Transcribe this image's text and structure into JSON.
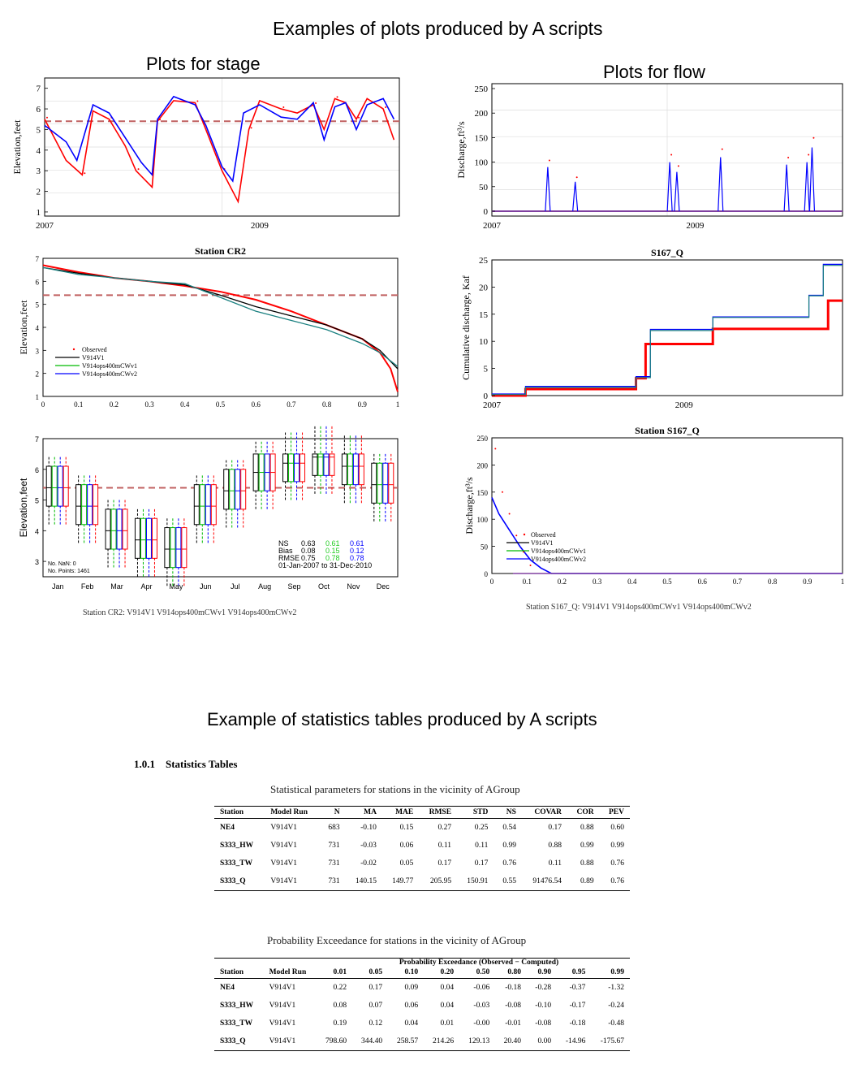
{
  "headings": {
    "main_title": "Examples of plots produced by A scripts",
    "stage_title": "Plots for stage",
    "flow_title": "Plots for flow",
    "tables_title": "Example of statistics tables produced by A scripts"
  },
  "colors": {
    "observed": "#ff0000",
    "v914v1": "#000000",
    "cwv1": "#00bb00",
    "cwv2": "#0000ff",
    "dashed": "#c06060",
    "teal": "#1a8080"
  },
  "chart_data": [
    {
      "id": "stage_ts",
      "type": "line",
      "ylabel": "Elevation,feet",
      "ylim": [
        0.8,
        7.5
      ],
      "yticks": [
        "1",
        "2",
        "3",
        "4",
        "5",
        "6",
        "7"
      ],
      "xticks": [
        "2007",
        "2009"
      ],
      "reference_line": 5.4,
      "series": [
        {
          "color": "red",
          "values": [
            [
              2007.0,
              5.5
            ],
            [
              2007.2,
              3.5
            ],
            [
              2007.35,
              2.8
            ],
            [
              2007.45,
              5.9
            ],
            [
              2007.6,
              5.5
            ],
            [
              2007.75,
              4.2
            ],
            [
              2007.85,
              3.0
            ],
            [
              2008.0,
              2.2
            ],
            [
              2008.05,
              5.4
            ],
            [
              2008.2,
              6.4
            ],
            [
              2008.4,
              6.3
            ],
            [
              2008.5,
              5.0
            ],
            [
              2008.65,
              3.0
            ],
            [
              2008.8,
              1.5
            ],
            [
              2008.9,
              5.0
            ],
            [
              2009.0,
              6.4
            ],
            [
              2009.2,
              6.0
            ],
            [
              2009.35,
              5.8
            ],
            [
              2009.5,
              6.2
            ],
            [
              2009.6,
              5.0
            ],
            [
              2009.7,
              6.5
            ],
            [
              2009.8,
              6.3
            ],
            [
              2009.9,
              5.5
            ],
            [
              2010.0,
              6.5
            ],
            [
              2010.15,
              6.0
            ],
            [
              2010.25,
              4.5
            ]
          ]
        },
        {
          "color": "blue",
          "values": [
            [
              2007.0,
              5.2
            ],
            [
              2007.2,
              4.4
            ],
            [
              2007.3,
              3.5
            ],
            [
              2007.45,
              6.2
            ],
            [
              2007.6,
              5.8
            ],
            [
              2007.75,
              4.6
            ],
            [
              2007.9,
              3.4
            ],
            [
              2008.0,
              2.8
            ],
            [
              2008.05,
              5.5
            ],
            [
              2008.2,
              6.6
            ],
            [
              2008.4,
              6.2
            ],
            [
              2008.5,
              5.2
            ],
            [
              2008.65,
              3.2
            ],
            [
              2008.75,
              2.5
            ],
            [
              2008.85,
              5.8
            ],
            [
              2009.0,
              6.2
            ],
            [
              2009.2,
              5.6
            ],
            [
              2009.35,
              5.5
            ],
            [
              2009.5,
              6.3
            ],
            [
              2009.6,
              4.5
            ],
            [
              2009.7,
              6.1
            ],
            [
              2009.8,
              6.3
            ],
            [
              2009.9,
              5.0
            ],
            [
              2010.0,
              6.2
            ],
            [
              2010.15,
              6.5
            ],
            [
              2010.25,
              5.5
            ]
          ]
        }
      ]
    },
    {
      "id": "stage_cdf",
      "type": "line",
      "title": "Station CR2",
      "ylabel": "Elevation,feet",
      "ylim": [
        1,
        7
      ],
      "yticks": [
        "1",
        "2",
        "3",
        "4",
        "5",
        "6",
        "7"
      ],
      "xticks": [
        "0",
        "0.1",
        "0.2",
        "0.3",
        "0.4",
        "0.5",
        "0.6",
        "0.7",
        "0.8",
        "0.9",
        "1"
      ],
      "reference_line": 5.4,
      "legend": [
        "Observed",
        "V914V1",
        "V914ops400mCWv1",
        "V914ops400mCWv2"
      ],
      "series": [
        {
          "color": "red",
          "values": [
            [
              0,
              6.7
            ],
            [
              0.1,
              6.4
            ],
            [
              0.2,
              6.15
            ],
            [
              0.3,
              6.0
            ],
            [
              0.4,
              5.8
            ],
            [
              0.5,
              5.55
            ],
            [
              0.6,
              5.2
            ],
            [
              0.7,
              4.7
            ],
            [
              0.8,
              4.1
            ],
            [
              0.9,
              3.5
            ],
            [
              0.95,
              2.9
            ],
            [
              0.98,
              2.2
            ],
            [
              1,
              1.2
            ]
          ]
        },
        {
          "color": "black",
          "values": [
            [
              0,
              6.6
            ],
            [
              0.1,
              6.35
            ],
            [
              0.2,
              6.15
            ],
            [
              0.3,
              6.0
            ],
            [
              0.4,
              5.85
            ],
            [
              0.5,
              5.4
            ],
            [
              0.6,
              4.9
            ],
            [
              0.7,
              4.5
            ],
            [
              0.8,
              4.1
            ],
            [
              0.9,
              3.5
            ],
            [
              0.95,
              3.0
            ],
            [
              1,
              2.2
            ]
          ]
        },
        {
          "color": "teal",
          "values": [
            [
              0,
              6.6
            ],
            [
              0.1,
              6.3
            ],
            [
              0.2,
              6.15
            ],
            [
              0.3,
              6.0
            ],
            [
              0.4,
              5.9
            ],
            [
              0.5,
              5.3
            ],
            [
              0.6,
              4.7
            ],
            [
              0.7,
              4.3
            ],
            [
              0.8,
              3.9
            ],
            [
              0.9,
              3.3
            ],
            [
              0.95,
              2.9
            ],
            [
              1,
              2.3
            ]
          ]
        }
      ]
    },
    {
      "id": "stage_box",
      "type": "box",
      "ylabel": "Elevation,feet",
      "ylim": [
        2.5,
        7
      ],
      "yticks": [
        "3",
        "4",
        "5",
        "6",
        "7"
      ],
      "categories": [
        "Jan",
        "Feb",
        "Mar",
        "Apr",
        "May",
        "Jun",
        "Jul",
        "Aug",
        "Sep",
        "Oct",
        "Nov",
        "Dec"
      ],
      "reference_line": 5.4,
      "medians": [
        5.4,
        4.8,
        4.0,
        3.7,
        3.4,
        4.8,
        5.3,
        5.9,
        6.2,
        6.4,
        6.1,
        5.5
      ],
      "stats_text": {
        "ns_label": "NS",
        "bias_label": "Bias",
        "rmse_label": "RMSE",
        "ns": [
          "0.63",
          "0.61",
          "0.61"
        ],
        "bias": [
          "0.08",
          "0.15",
          "0.12"
        ],
        "rmse": [
          "0.75",
          "0.78",
          "0.78"
        ],
        "period": "01-Jan-2007 to 31-Dec-2010"
      },
      "nan_text": "No. NaN: 0",
      "points_text": "No. Points: 1461",
      "caption": "Station CR2: V914V1 V914ops400mCWv1 V914ops400mCWv2"
    },
    {
      "id": "flow_ts",
      "type": "line",
      "ylabel": "Discharge,ft³/s",
      "ylim": [
        -10,
        260
      ],
      "yticks": [
        "0",
        "50",
        "100",
        "150",
        "200",
        "250"
      ],
      "xticks": [
        "2007",
        "2009"
      ],
      "spikes": [
        [
          2007.55,
          90
        ],
        [
          2007.82,
          60
        ],
        [
          2008.75,
          100
        ],
        [
          2008.82,
          80
        ],
        [
          2009.25,
          110
        ],
        [
          2009.9,
          95
        ],
        [
          2010.1,
          100
        ],
        [
          2010.15,
          130
        ]
      ]
    },
    {
      "id": "flow_cum",
      "type": "line",
      "title": "S167_Q",
      "ylabel": "Cumulative discharge, Kaf",
      "ylim": [
        0,
        25
      ],
      "yticks": [
        "0",
        "5",
        "10",
        "15",
        "20",
        "25"
      ],
      "xticks": [
        "2007",
        "2009"
      ],
      "series": [
        {
          "color": "red",
          "values": [
            [
              2007,
              0
            ],
            [
              2007.3,
              0
            ],
            [
              2007.35,
              1.2
            ],
            [
              2008.4,
              1.2
            ],
            [
              2008.5,
              3.2
            ],
            [
              2008.6,
              9.5
            ],
            [
              2009.25,
              9.5
            ],
            [
              2009.3,
              12.3
            ],
            [
              2010.45,
              12.3
            ],
            [
              2010.5,
              17.5
            ],
            [
              2010.65,
              17.5
            ]
          ]
        },
        {
          "color": "blue",
          "values": [
            [
              2007,
              0.3
            ],
            [
              2007.3,
              0.3
            ],
            [
              2007.35,
              1.7
            ],
            [
              2008.4,
              1.7
            ],
            [
              2008.5,
              3.5
            ],
            [
              2008.65,
              12.2
            ],
            [
              2009.25,
              12.2
            ],
            [
              2009.3,
              14.5
            ],
            [
              2010.2,
              14.5
            ],
            [
              2010.3,
              18.5
            ],
            [
              2010.45,
              24.2
            ],
            [
              2010.65,
              24.2
            ]
          ]
        },
        {
          "color": "teal",
          "values": [
            [
              2007,
              0.2
            ],
            [
              2007.3,
              0.2
            ],
            [
              2007.35,
              1.5
            ],
            [
              2008.4,
              1.5
            ],
            [
              2008.5,
              3.3
            ],
            [
              2008.65,
              12.0
            ],
            [
              2009.25,
              12.0
            ],
            [
              2009.3,
              14.4
            ],
            [
              2010.2,
              14.4
            ],
            [
              2010.3,
              18.4
            ],
            [
              2010.45,
              24.0
            ],
            [
              2010.65,
              24.0
            ]
          ]
        }
      ]
    },
    {
      "id": "flow_cdf",
      "type": "line",
      "title": "Station S167_Q",
      "ylabel": "Discharge,ft³/s",
      "ylim": [
        0,
        250
      ],
      "yticks": [
        "0",
        "50",
        "100",
        "150",
        "200",
        "250"
      ],
      "xticks": [
        "0",
        "0.1",
        "0.2",
        "0.3",
        "0.4",
        "0.5",
        "0.6",
        "0.7",
        "0.8",
        "0.9",
        "1"
      ],
      "legend": [
        "Observed",
        "V914V1",
        "V914ops400mCWv1",
        "V914ops400mCWv2"
      ],
      "series": [
        {
          "color": "blue",
          "values": [
            [
              0,
              140
            ],
            [
              0.02,
              110
            ],
            [
              0.05,
              80
            ],
            [
              0.08,
              50
            ],
            [
              0.11,
              25
            ],
            [
              0.14,
              10
            ],
            [
              0.17,
              0
            ],
            [
              1,
              0
            ]
          ]
        },
        {
          "color": "purple",
          "values": [
            [
              0.06,
              0
            ],
            [
              1,
              0
            ]
          ]
        }
      ],
      "caption": "Station S167_Q: V914V1 V914ops400mCWv1 V914ops400mCWv2"
    }
  ],
  "tables": {
    "section_number": "1.0.1",
    "section_title": "Statistics Tables",
    "stats_caption": "Statistical parameters for stations in the vicinity of AGroup",
    "stats_headers": [
      "Station",
      "Model Run",
      "N",
      "MA",
      "MAE",
      "RMSE",
      "STD",
      "NS",
      "COVAR",
      "COR",
      "PEV"
    ],
    "stats_rows": [
      [
        "NE4",
        "V914V1",
        "683",
        "-0.10",
        "0.15",
        "0.27",
        "0.25",
        "0.54",
        "0.17",
        "0.88",
        "0.60"
      ],
      [
        "S333_HW",
        "V914V1",
        "731",
        "-0.03",
        "0.06",
        "0.11",
        "0.11",
        "0.99",
        "0.88",
        "0.99",
        "0.99"
      ],
      [
        "S333_TW",
        "V914V1",
        "731",
        "-0.02",
        "0.05",
        "0.17",
        "0.17",
        "0.76",
        "0.11",
        "0.88",
        "0.76"
      ],
      [
        "S333_Q",
        "V914V1",
        "731",
        "140.15",
        "149.77",
        "205.95",
        "150.91",
        "0.55",
        "91476.54",
        "0.89",
        "0.76"
      ]
    ],
    "prob_caption": "Probability Exceedance for stations in the vicinity of AGroup",
    "prob_group_header": "Probability Exceedance (Observed − Computed)",
    "prob_headers": [
      "Station",
      "Model Run",
      "0.01",
      "0.05",
      "0.10",
      "0.20",
      "0.50",
      "0.80",
      "0.90",
      "0.95",
      "0.99"
    ],
    "prob_rows": [
      [
        "NE4",
        "V914V1",
        "0.22",
        "0.17",
        "0.09",
        "0.04",
        "-0.06",
        "-0.18",
        "-0.28",
        "-0.37",
        "-1.32"
      ],
      [
        "S333_HW",
        "V914V1",
        "0.08",
        "0.07",
        "0.06",
        "0.04",
        "-0.03",
        "-0.08",
        "-0.10",
        "-0.17",
        "-0.24"
      ],
      [
        "S333_TW",
        "V914V1",
        "0.19",
        "0.12",
        "0.04",
        "0.01",
        "-0.00",
        "-0.01",
        "-0.08",
        "-0.18",
        "-0.48"
      ],
      [
        "S333_Q",
        "V914V1",
        "798.60",
        "344.40",
        "258.57",
        "214.26",
        "129.13",
        "20.40",
        "0.00",
        "-14.96",
        "-175.67"
      ]
    ]
  }
}
